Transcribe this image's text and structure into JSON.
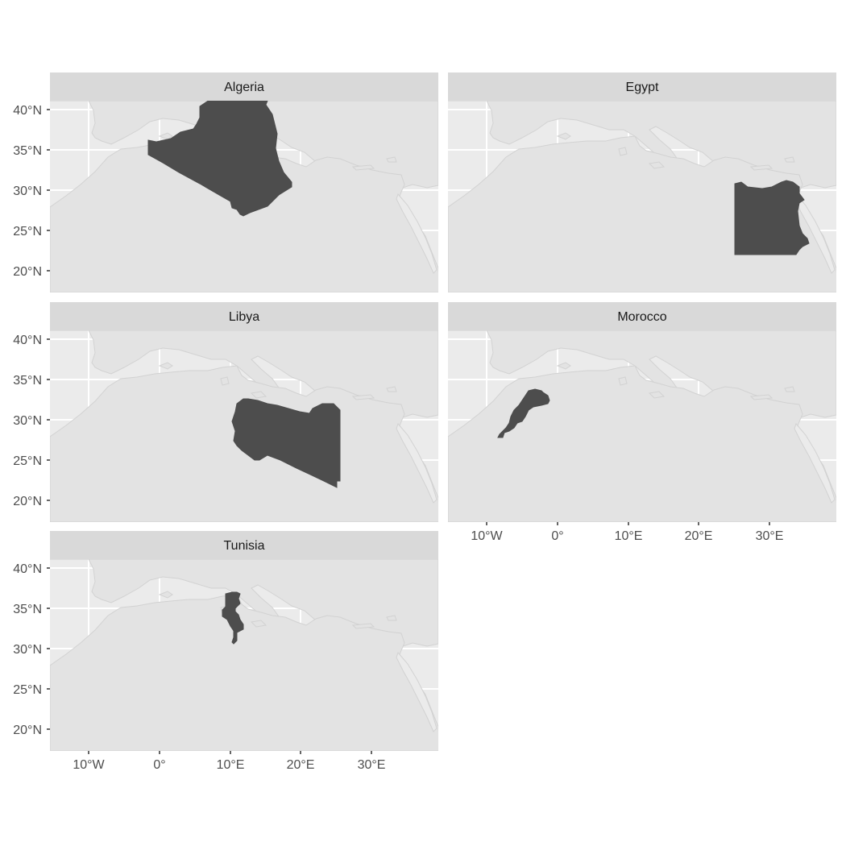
{
  "chart_data": {
    "type": "faceted-map",
    "panels": [
      "Algeria",
      "Egypt",
      "Libya",
      "Morocco",
      "Tunisia"
    ],
    "x_ticks": [
      "10°W",
      "0°",
      "10°E",
      "20°E",
      "30°E"
    ],
    "y_ticks": [
      "40°N",
      "35°N",
      "30°N",
      "25°N",
      "20°N"
    ],
    "lon_range": [
      -15.5,
      39.5
    ],
    "lat_range": [
      17.5,
      41.5
    ],
    "grid": true,
    "colors": {
      "panel_background": "#ebebeb",
      "land": "#e3e3e3",
      "coast_line": "#d2d2d2",
      "highlight_fill": "#4d4d4d",
      "strip_background": "#d9d9d9",
      "grid_line": "#ffffff"
    }
  }
}
